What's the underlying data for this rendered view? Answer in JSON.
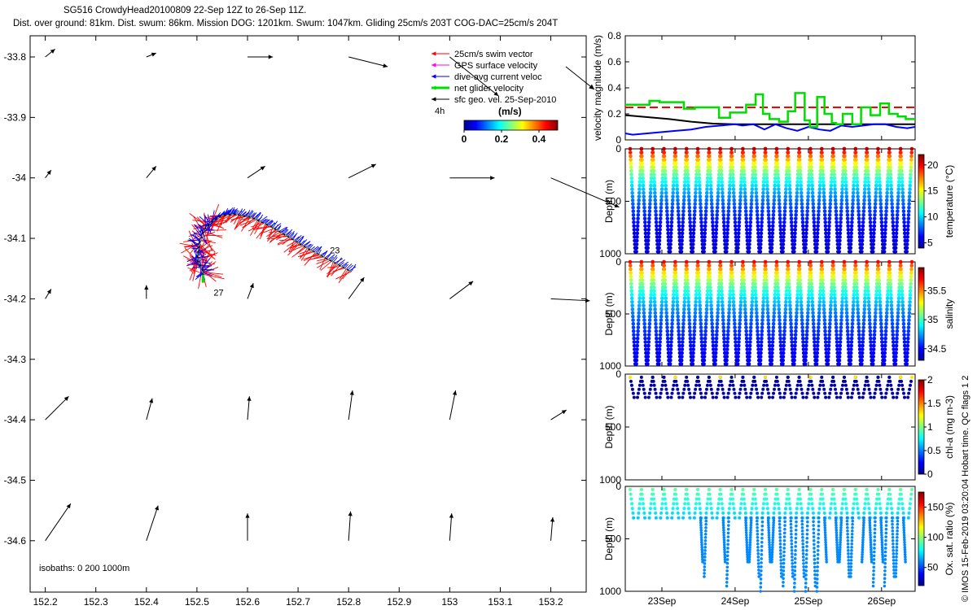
{
  "title": {
    "line1": "SG516 CrowdyHead20100809 22-Sep 12Z to 26-Sep 11Z.",
    "line2": "Dist. over ground: 81km. Dist. swum: 86km. Mission DOG: 1201km. Swum: 1047km. Gliding 25cm/s 203T COG-DAC=25cm/s 204T"
  },
  "credit": "© IMOS 15-Feb-2019 03:20:04 Hobart time. QC flags 1  2",
  "colors": {
    "swim": "#ff0000",
    "gps": "#ff00ff",
    "dac": "#0000ff",
    "net": "#00dd00",
    "geo": "#000000",
    "colormap": [
      "#00008f",
      "#0000ff",
      "#0080ff",
      "#00ffff",
      "#80ff80",
      "#ffff00",
      "#ff8000",
      "#ff0000",
      "#800000"
    ]
  },
  "chart_data": [
    {
      "type": "map",
      "xticks": [
        "152.2",
        "152.3",
        "152.4",
        "152.5",
        "152.6",
        "152.7",
        "152.8",
        "152.9",
        "153",
        "153.1",
        "153.2"
      ],
      "yticks": [
        "-33.8",
        "-33.9",
        "-34",
        "-34.1",
        "-34.2",
        "-34.3",
        "-34.4",
        "-34.5",
        "-34.6"
      ],
      "xlim": [
        152.17,
        153.27
      ],
      "ylim": [
        -34.685,
        -33.765
      ],
      "legend": {
        "items": [
          "25cm/s swim vector",
          "GPS surface velocity",
          "dive-avg current veloc",
          "net glider velocity",
          "sfc geo. vel. 25-Sep-2010"
        ],
        "scale_label": "4h",
        "colorbar_label": "(m/s)",
        "colorbar_ticks": [
          "0",
          "0.2",
          "0.4"
        ],
        "colorbar_range": [
          0,
          0.5
        ]
      },
      "isobaths_label": "isobaths: 0   200  1000m",
      "annotations": [
        {
          "text": "23",
          "lon": 152.763,
          "lat": -34.125
        },
        {
          "text": "27",
          "lon": 152.533,
          "lat": -34.195
        }
      ],
      "track": [
        [
          152.805,
          -34.155
        ],
        [
          152.76,
          -34.135
        ],
        [
          152.715,
          -34.115
        ],
        [
          152.68,
          -34.097
        ],
        [
          152.645,
          -34.08
        ],
        [
          152.61,
          -34.066
        ],
        [
          152.575,
          -34.06
        ],
        [
          152.55,
          -34.062
        ],
        [
          152.53,
          -34.072
        ],
        [
          152.515,
          -34.085
        ],
        [
          152.508,
          -34.1
        ],
        [
          152.503,
          -34.118
        ],
        [
          152.5,
          -34.135
        ],
        [
          152.51,
          -34.15
        ],
        [
          152.512,
          -34.16
        ]
      ],
      "geo_vectors": [
        {
          "lon": 152.2,
          "lat": -33.8,
          "u": 0.05,
          "v": 0.04
        },
        {
          "lon": 152.4,
          "lat": -33.8,
          "u": 0.05,
          "v": 0.02
        },
        {
          "lon": 152.6,
          "lat": -33.8,
          "u": 0.13,
          "v": 0.0
        },
        {
          "lon": 152.8,
          "lat": -33.8,
          "u": 0.2,
          "v": -0.05
        },
        {
          "lon": 153.0,
          "lat": -33.8,
          "u": 0.25,
          "v": -0.2
        },
        {
          "lon": 152.2,
          "lat": -34.0,
          "u": 0.03,
          "v": 0.04
        },
        {
          "lon": 152.4,
          "lat": -34.0,
          "u": 0.05,
          "v": 0.06
        },
        {
          "lon": 152.6,
          "lat": -34.0,
          "u": 0.09,
          "v": 0.06
        },
        {
          "lon": 152.8,
          "lat": -34.0,
          "u": 0.14,
          "v": 0.07
        },
        {
          "lon": 153.0,
          "lat": -34.0,
          "u": 0.23,
          "v": 0.0
        },
        {
          "lon": 153.2,
          "lat": -34.0,
          "u": 0.35,
          "v": -0.15
        },
        {
          "lon": 152.2,
          "lat": -34.2,
          "u": 0.03,
          "v": 0.05
        },
        {
          "lon": 152.4,
          "lat": -34.2,
          "u": 0.0,
          "v": 0.07
        },
        {
          "lon": 152.6,
          "lat": -34.2,
          "u": 0.03,
          "v": 0.08
        },
        {
          "lon": 152.8,
          "lat": -34.2,
          "u": 0.08,
          "v": 0.11
        },
        {
          "lon": 153.0,
          "lat": -34.2,
          "u": 0.12,
          "v": 0.09
        },
        {
          "lon": 153.2,
          "lat": -34.2,
          "u": 0.2,
          "v": -0.01
        },
        {
          "lon": 152.2,
          "lat": -34.4,
          "u": 0.12,
          "v": 0.12
        },
        {
          "lon": 152.4,
          "lat": -34.4,
          "u": 0.03,
          "v": 0.11
        },
        {
          "lon": 152.6,
          "lat": -34.4,
          "u": 0.01,
          "v": 0.12
        },
        {
          "lon": 152.8,
          "lat": -34.4,
          "u": 0.02,
          "v": 0.15
        },
        {
          "lon": 153.0,
          "lat": -34.4,
          "u": 0.03,
          "v": 0.15
        },
        {
          "lon": 153.2,
          "lat": -34.4,
          "u": 0.08,
          "v": 0.05
        },
        {
          "lon": 152.2,
          "lat": -34.6,
          "u": 0.13,
          "v": 0.19
        },
        {
          "lon": 152.4,
          "lat": -34.6,
          "u": 0.06,
          "v": 0.18
        },
        {
          "lon": 152.6,
          "lat": -34.6,
          "u": 0.0,
          "v": 0.14
        },
        {
          "lon": 152.8,
          "lat": -34.6,
          "u": 0.01,
          "v": 0.15
        },
        {
          "lon": 153.0,
          "lat": -34.6,
          "u": 0.01,
          "v": 0.14
        },
        {
          "lon": 153.2,
          "lat": -34.6,
          "u": 0.01,
          "v": 0.12
        }
      ]
    },
    {
      "type": "line",
      "ylabel": "velocity magnitude (m/s)",
      "ylim": [
        0,
        0.8
      ],
      "yticks": [
        "0",
        "0.2",
        "0.4",
        "0.6",
        "0.8"
      ],
      "x_days_range": [
        22.5,
        26.458
      ],
      "series": [
        {
          "color": "#ff0000",
          "style": "dashed",
          "x": [
            22.5,
            26.458
          ],
          "values": [
            0.25,
            0.25
          ]
        },
        {
          "color": "#000000",
          "style": "solid",
          "x": [
            22.5,
            22.8,
            23.1,
            23.4,
            23.7,
            24.0,
            26.458
          ],
          "values": [
            0.19,
            0.175,
            0.16,
            0.14,
            0.125,
            0.12,
            0.12
          ]
        },
        {
          "color": "#0000ff",
          "style": "solid",
          "x": [
            22.5,
            22.6,
            22.8,
            23.0,
            23.2,
            23.4,
            23.6,
            23.8,
            24.0,
            24.1,
            24.25,
            24.4,
            24.55,
            24.7,
            24.85,
            25.0,
            25.15,
            25.3,
            25.45,
            25.6,
            25.75,
            25.9,
            26.05,
            26.2,
            26.35,
            26.458
          ],
          "values": [
            0.05,
            0.04,
            0.05,
            0.06,
            0.07,
            0.08,
            0.1,
            0.11,
            0.12,
            0.11,
            0.12,
            0.08,
            0.12,
            0.09,
            0.07,
            0.1,
            0.08,
            0.07,
            0.11,
            0.1,
            0.11,
            0.12,
            0.12,
            0.1,
            0.09,
            0.1
          ]
        },
        {
          "color": "#00dd00",
          "style": "step",
          "x": [
            22.5,
            22.83,
            22.97,
            23.3,
            23.45,
            23.78,
            23.93,
            24.15,
            24.28,
            24.38,
            24.47,
            24.6,
            24.72,
            24.82,
            24.95,
            25.02,
            25.12,
            25.22,
            25.32,
            25.38,
            25.47,
            25.6,
            25.72,
            25.85,
            25.98,
            26.1,
            26.22,
            26.33,
            26.458
          ],
          "values": [
            0.27,
            0.3,
            0.29,
            0.24,
            0.25,
            0.17,
            0.21,
            0.27,
            0.35,
            0.2,
            0.16,
            0.14,
            0.22,
            0.36,
            0.15,
            0.1,
            0.33,
            0.2,
            0.13,
            0.12,
            0.2,
            0.12,
            0.25,
            0.19,
            0.28,
            0.2,
            0.18,
            0.16,
            0.16
          ]
        }
      ]
    },
    {
      "type": "scatter",
      "ylabel": "Depth (m)",
      "ylim": [
        1000,
        0
      ],
      "yticks": [
        "0",
        "500",
        "1000"
      ],
      "colorbar_label": "temperature (°C)",
      "colorbar_ticks": [
        "5",
        "10",
        "15",
        "20"
      ],
      "colorbar_range": [
        4,
        22
      ],
      "profiles": {
        "count": 25,
        "max_depth": 980,
        "surface_value": 21,
        "deep_value": 4.5
      }
    },
    {
      "type": "scatter",
      "ylabel": "Depth (m)",
      "ylim": [
        1000,
        0
      ],
      "yticks": [
        "0",
        "500",
        "1000"
      ],
      "colorbar_label": "salinity",
      "colorbar_ticks": [
        "34.5",
        "35",
        "35.5"
      ],
      "colorbar_range": [
        34.3,
        35.9
      ],
      "profiles": {
        "count": 25,
        "max_depth": 980,
        "surface_value": 35.7,
        "deep_value": 34.4
      }
    },
    {
      "type": "scatter",
      "ylabel": "Depth (m)",
      "ylim": [
        1000,
        0
      ],
      "yticks": [
        "0",
        "500",
        "1000"
      ],
      "colorbar_label": "chl-a (mg m-3)",
      "colorbar_ticks": [
        "0",
        "0.5",
        "1",
        "1.5",
        "2"
      ],
      "colorbar_range": [
        0,
        2
      ],
      "profiles": {
        "count": 25,
        "max_depth": 220,
        "surface_value": 0.4,
        "deep_value": 0.05
      }
    },
    {
      "type": "scatter",
      "ylabel": "Depth (m)",
      "ylim": [
        1000,
        0
      ],
      "yticks": [
        "0",
        "500",
        "1000"
      ],
      "colorbar_label": "Ox. sat. ratio (%)",
      "colorbar_ticks": [
        "50",
        "100",
        "150"
      ],
      "colorbar_range": [
        20,
        175
      ],
      "profiles": {
        "count": 25,
        "max_depth": 300,
        "surface_value": 92,
        "deep_value": 70
      },
      "deep_segments": [
        [
          0,
          0
        ],
        [
          0,
          0
        ],
        [
          0,
          0
        ],
        [
          0,
          0
        ],
        [
          0,
          0
        ],
        [
          0,
          0
        ],
        [
          1,
          2
        ],
        [
          0,
          0
        ],
        [
          1,
          3
        ],
        [
          0,
          0
        ],
        [
          1,
          1
        ],
        [
          2,
          4
        ],
        [
          1,
          1
        ],
        [
          2,
          3
        ],
        [
          2,
          4
        ],
        [
          2,
          4
        ],
        [
          3,
          4
        ],
        [
          1,
          0
        ],
        [
          1,
          1
        ],
        [
          2,
          2
        ],
        [
          0,
          1
        ],
        [
          1,
          3
        ],
        [
          1,
          3
        ],
        [
          2,
          2
        ],
        [
          1,
          0
        ]
      ]
    }
  ],
  "time_axis": {
    "labels": [
      "23Sep",
      "24Sep",
      "25Sep",
      "26Sep"
    ],
    "positions_days": [
      23,
      24,
      25,
      26
    ]
  }
}
